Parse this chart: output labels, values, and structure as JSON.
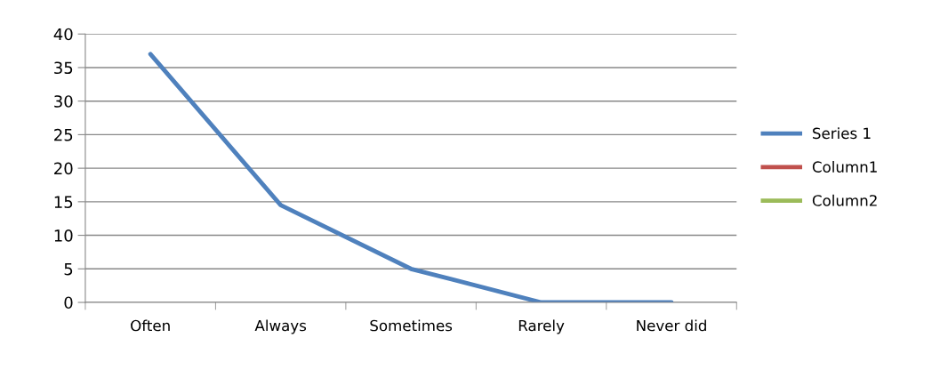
{
  "chart_data": {
    "type": "line",
    "categories": [
      "Often",
      "Always",
      "Sometimes",
      "Rarely",
      "Never did"
    ],
    "series": [
      {
        "name": "Series 1",
        "color": "#4f81bd",
        "values": [
          37,
          14.5,
          5,
          0,
          0
        ]
      },
      {
        "name": "Column1",
        "color": "#c0504d",
        "values": [
          null,
          null,
          null,
          null,
          null
        ]
      },
      {
        "name": "Column2",
        "color": "#9bbb59",
        "values": [
          null,
          null,
          null,
          null,
          null
        ]
      }
    ],
    "ylim": [
      0,
      40
    ],
    "yticks": [
      0,
      5,
      10,
      15,
      20,
      25,
      30,
      35,
      40
    ],
    "grid": "y",
    "legend": "right",
    "marker": "none",
    "line_style": "solid"
  }
}
